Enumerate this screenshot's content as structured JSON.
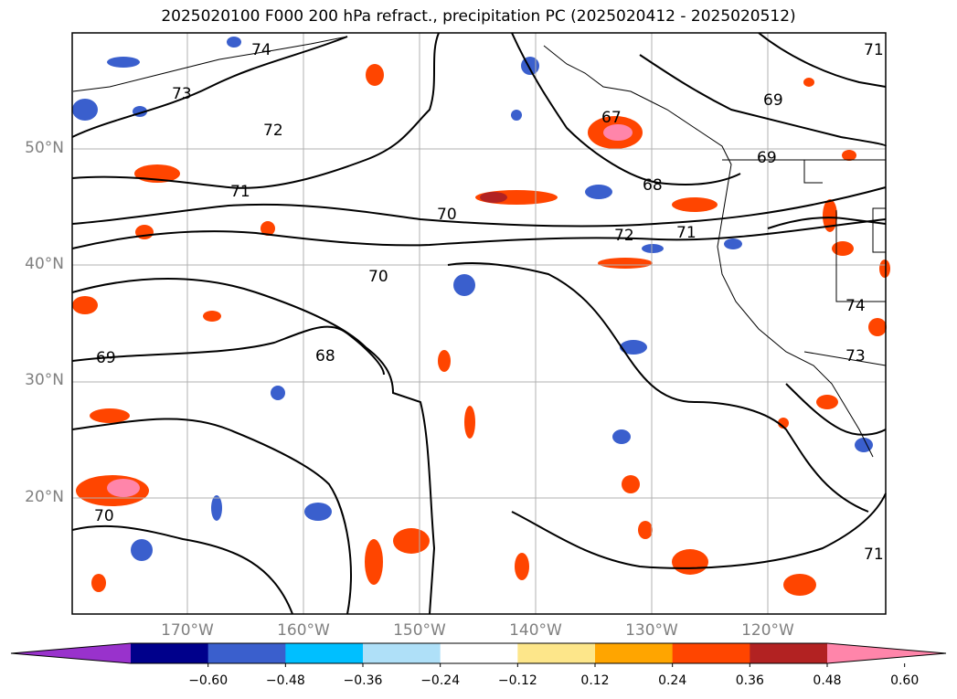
{
  "title": "2025020100 F000 200 hPa refract., precipitation PC (2025020412 - 2025020512)",
  "lat_labels": [
    {
      "text": "50°N",
      "lat": 50
    },
    {
      "text": "40°N",
      "lat": 40
    },
    {
      "text": "30°N",
      "lat": 30
    },
    {
      "text": "20°N",
      "lat": 20
    }
  ],
  "lon_labels": [
    {
      "text": "170°W",
      "lon": -170
    },
    {
      "text": "160°W",
      "lon": -160
    },
    {
      "text": "150°W",
      "lon": -150
    },
    {
      "text": "140°W",
      "lon": -140
    },
    {
      "text": "130°W",
      "lon": -130
    },
    {
      "text": "120°W",
      "lon": -120
    }
  ],
  "map_extent": {
    "lon_min": -180,
    "lon_max": -110,
    "lat_min": 10,
    "lat_max": 60
  },
  "contour_labels": [
    "74",
    "73",
    "72",
    "71",
    "70",
    "69",
    "68",
    "67"
  ],
  "colorbar": {
    "ticks": [
      "−0.60",
      "−0.48",
      "−0.36",
      "−0.24",
      "−0.12",
      "0.12",
      "0.24",
      "0.36",
      "0.48",
      "0.60"
    ],
    "colors": [
      "#9932cc",
      "#00008b",
      "#3a5fcd",
      "#00bfff",
      "#afe0f8",
      "#ffffff",
      "#fde68a",
      "#ffa500",
      "#ff4500",
      "#b22222",
      "#ff85aa"
    ]
  }
}
